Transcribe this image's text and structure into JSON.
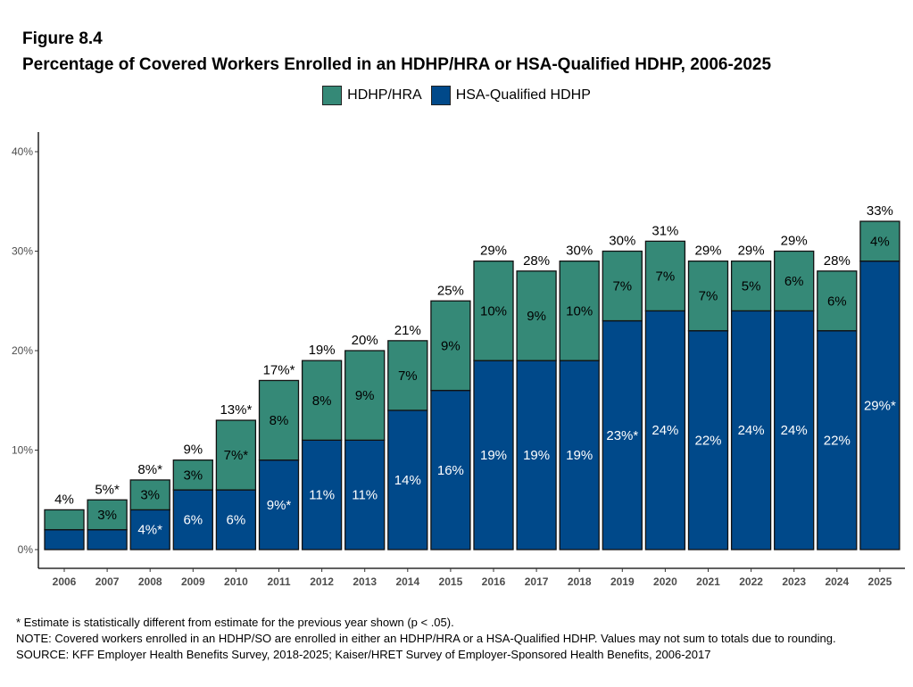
{
  "figure_label": "Figure 8.4",
  "chart_data": {
    "type": "bar",
    "stacked": true,
    "title": "Percentage of Covered Workers Enrolled in an HDHP/HRA or HSA-Qualified HDHP, 2006-2025",
    "xlabel": "",
    "ylabel": "",
    "ylim": [
      0,
      40
    ],
    "yticks": [
      "0%",
      "10%",
      "20%",
      "30%",
      "40%"
    ],
    "ytick_values": [
      0,
      10,
      20,
      30,
      40
    ],
    "legend_position": "top",
    "categories": [
      "2006",
      "2007",
      "2008",
      "2009",
      "2010",
      "2011",
      "2012",
      "2013",
      "2014",
      "2015",
      "2016",
      "2017",
      "2018",
      "2019",
      "2020",
      "2021",
      "2022",
      "2023",
      "2024",
      "2025"
    ],
    "series": [
      {
        "name": "HSA-Qualified HDHP",
        "color": "#00498A",
        "values": [
          2,
          2,
          4,
          6,
          6,
          9,
          11,
          11,
          14,
          16,
          19,
          19,
          19,
          23,
          24,
          22,
          24,
          24,
          22,
          29
        ],
        "labels": [
          "",
          "",
          "4%*",
          "6%",
          "6%",
          "9%*",
          "11%",
          "11%",
          "14%",
          "16%",
          "19%",
          "19%",
          "19%",
          "23%*",
          "24%",
          "22%",
          "24%",
          "24%",
          "22%",
          "29%*"
        ]
      },
      {
        "name": "HDHP/HRA",
        "color": "#358977",
        "values": [
          2,
          3,
          3,
          3,
          7,
          8,
          8,
          9,
          7,
          9,
          10,
          9,
          10,
          7,
          7,
          7,
          5,
          6,
          6,
          4
        ],
        "labels": [
          "",
          "3%",
          "3%",
          "3%",
          "7%*",
          "8%",
          "8%",
          "9%",
          "7%",
          "9%",
          "10%",
          "9%",
          "10%",
          "7%",
          "7%",
          "7%",
          "5%",
          "6%",
          "6%",
          "4%"
        ]
      }
    ],
    "totals": [
      "4%",
      "5%*",
      "8%*",
      "9%",
      "13%*",
      "17%*",
      "19%",
      "20%",
      "21%",
      "25%",
      "29%",
      "28%",
      "30%",
      "30%",
      "31%",
      "29%",
      "29%",
      "29%",
      "28%",
      "33%"
    ],
    "legend_order": [
      "HDHP/HRA",
      "HSA-Qualified HDHP"
    ]
  },
  "notes": {
    "asterisk": "* Estimate is statistically different from estimate for the previous year shown (p < .05).",
    "note": "NOTE: Covered workers enrolled in an HDHP/SO are enrolled in either an HDHP/HRA or a HSA-Qualified HDHP. Values may not sum to totals due to rounding.",
    "source": "SOURCE: KFF Employer Health Benefits Survey, 2018-2025; Kaiser/HRET Survey of Employer-Sponsored Health Benefits, 2006-2017"
  }
}
